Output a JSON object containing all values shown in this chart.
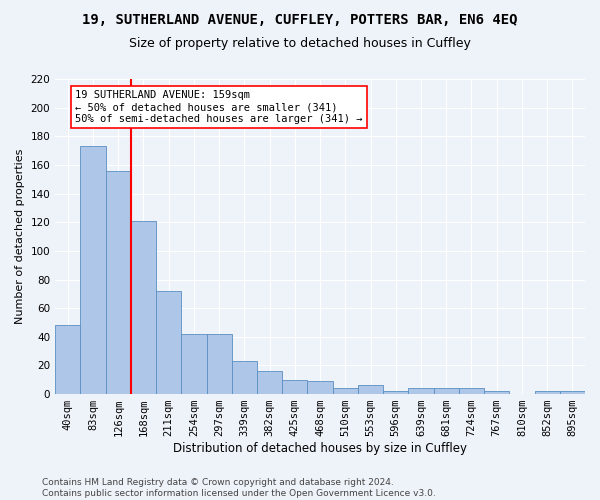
{
  "title1": "19, SUTHERLAND AVENUE, CUFFLEY, POTTERS BAR, EN6 4EQ",
  "title2": "Size of property relative to detached houses in Cuffley",
  "xlabel": "Distribution of detached houses by size in Cuffley",
  "ylabel": "Number of detached properties",
  "categories": [
    "40sqm",
    "83sqm",
    "126sqm",
    "168sqm",
    "211sqm",
    "254sqm",
    "297sqm",
    "339sqm",
    "382sqm",
    "425sqm",
    "468sqm",
    "510sqm",
    "553sqm",
    "596sqm",
    "639sqm",
    "681sqm",
    "724sqm",
    "767sqm",
    "810sqm",
    "852sqm",
    "895sqm"
  ],
  "values": [
    48,
    173,
    156,
    121,
    72,
    42,
    42,
    23,
    16,
    10,
    9,
    4,
    6,
    2,
    4,
    4,
    4,
    2,
    0,
    2,
    2
  ],
  "bar_color": "#aec6e8",
  "bar_edge_color": "#5a8fc2",
  "vline_color": "red",
  "vline_x_index": 2.5,
  "annotation_text": "19 SUTHERLAND AVENUE: 159sqm\n← 50% of detached houses are smaller (341)\n50% of semi-detached houses are larger (341) →",
  "annotation_box_color": "white",
  "annotation_box_edge_color": "red",
  "ylim": [
    0,
    220
  ],
  "yticks": [
    0,
    20,
    40,
    60,
    80,
    100,
    120,
    140,
    160,
    180,
    200,
    220
  ],
  "footnote": "Contains HM Land Registry data © Crown copyright and database right 2024.\nContains public sector information licensed under the Open Government Licence v3.0.",
  "background_color": "#eef2f9",
  "grid_color": "#ffffff",
  "title1_fontsize": 10,
  "title2_fontsize": 9,
  "xlabel_fontsize": 8.5,
  "ylabel_fontsize": 8,
  "tick_fontsize": 7.5,
  "footnote_fontsize": 6.5,
  "annotation_fontsize": 7.5
}
